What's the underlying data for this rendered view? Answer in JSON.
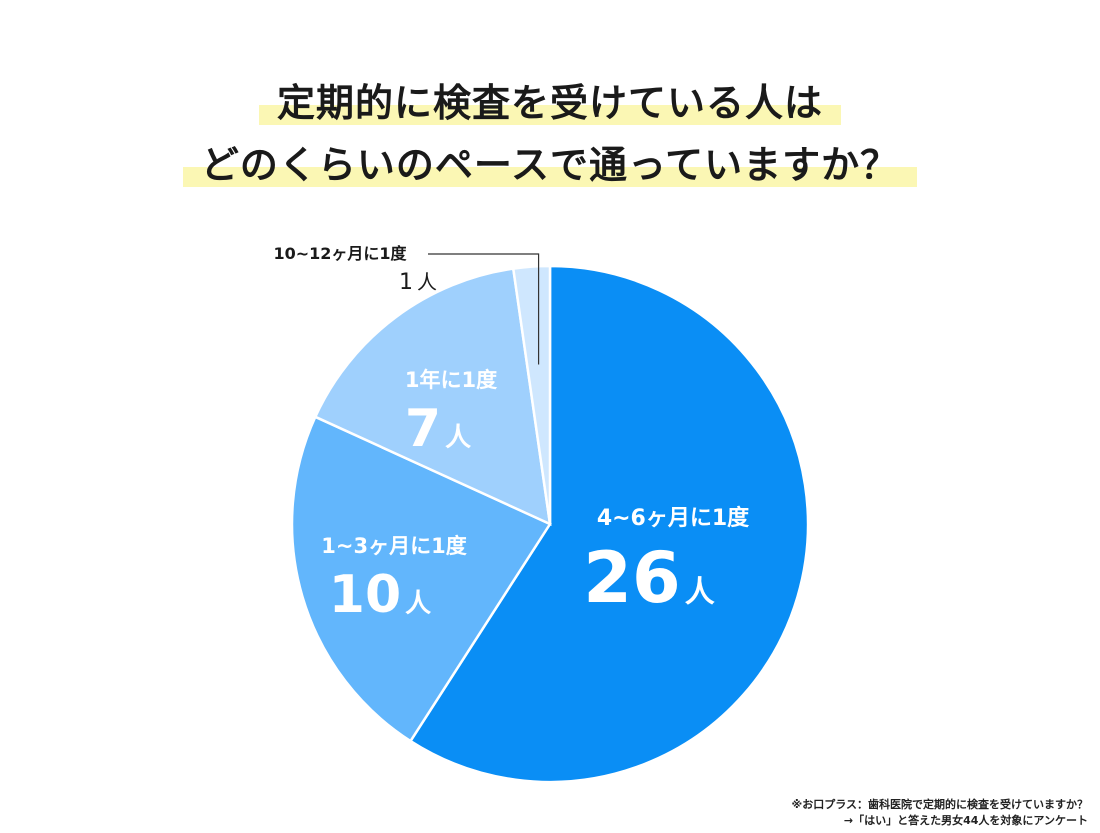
{
  "title": {
    "line1": "定期的に検査を受けている人は",
    "line2": "どのくらいのペースで通っていますか？"
  },
  "chart_data": {
    "type": "pie",
    "unit": "人",
    "slices": [
      {
        "label": "4~6ヶ月に1度",
        "value": 26,
        "count_label": "26",
        "color": "#0a8ef5"
      },
      {
        "label": "1~3ヶ月に1度",
        "value": 10,
        "count_label": "10",
        "color": "#62b6fc"
      },
      {
        "label": "1年に1度",
        "value": 7,
        "count_label": "7",
        "color": "#9fd0fd"
      },
      {
        "label": "10~12ヶ月に1度",
        "value": 1,
        "count_label": "1",
        "color": "#cfe7fe"
      }
    ]
  },
  "footnote": {
    "line1": "※お口プラス：歯科医院で定期的に検査を受けていますか？",
    "line2": "→「はい」と答えた男女44人を対象にアンケート"
  }
}
